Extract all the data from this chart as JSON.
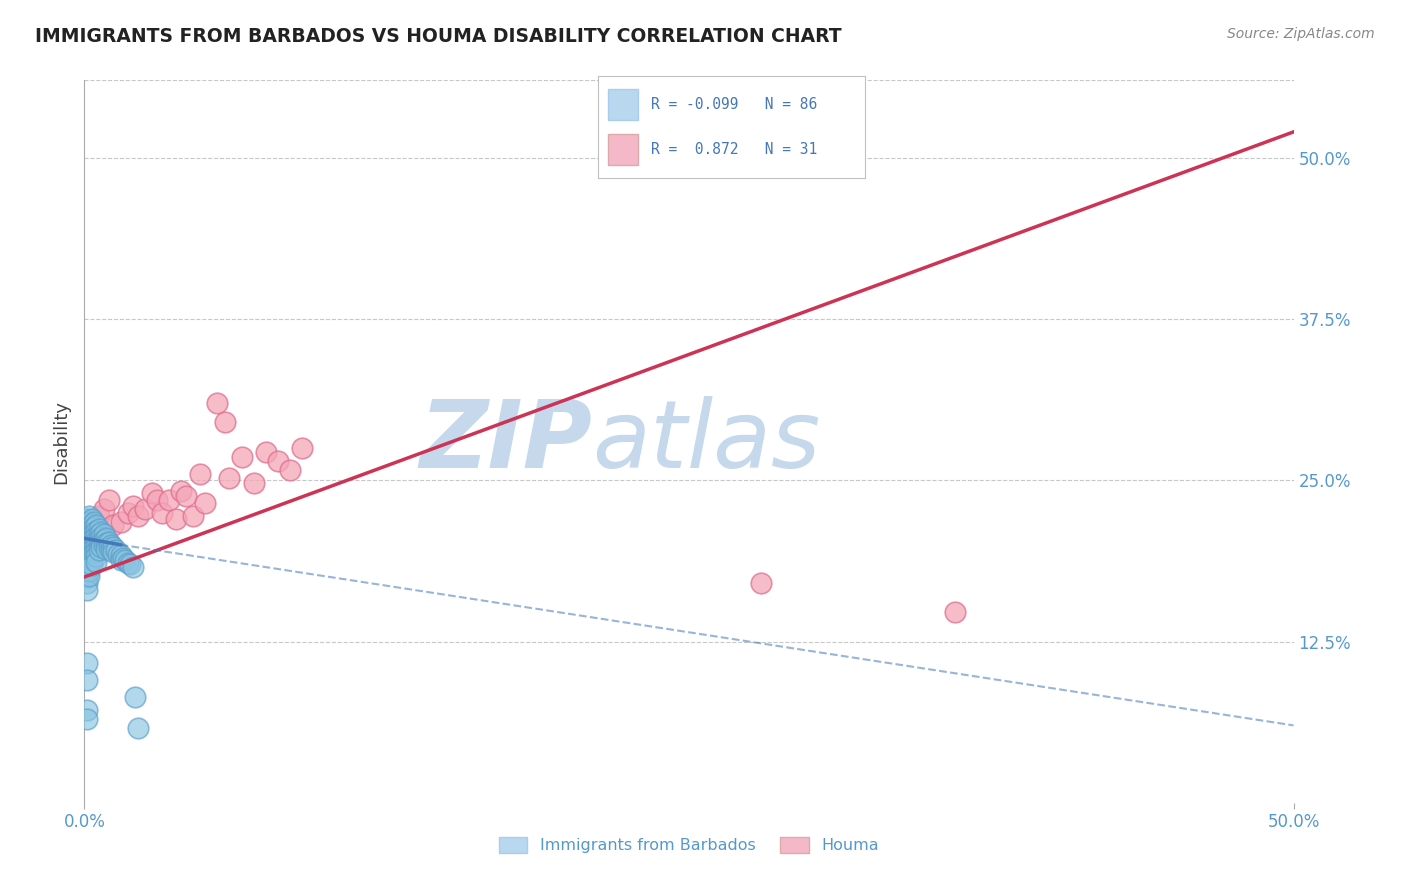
{
  "title": "IMMIGRANTS FROM BARBADOS VS HOUMA DISABILITY CORRELATION CHART",
  "source": "Source: ZipAtlas.com",
  "ylabel_label": "Disability",
  "xlim": [
    0,
    0.5
  ],
  "ylim": [
    0,
    0.56
  ],
  "blue_R": -0.099,
  "blue_N": 86,
  "pink_R": 0.872,
  "pink_N": 31,
  "blue_color": "#89c4e1",
  "blue_edge": "#5b9ec9",
  "pink_color": "#f4a7b8",
  "pink_edge": "#e07090",
  "blue_line_color": "#4477bb",
  "pink_line_color": "#cc3355",
  "watermark_zip_color": "#c5d8ec",
  "watermark_atlas_color": "#c5d8ec",
  "background_color": "#ffffff",
  "grid_color": "#c8c8c8",
  "legend_blue_box": "#b8d8f0",
  "legend_pink_box": "#f4b8c8",
  "tick_color": "#5599cc",
  "blue_scatter_x": [
    0.001,
    0.001,
    0.001,
    0.001,
    0.001,
    0.001,
    0.001,
    0.001,
    0.001,
    0.001,
    0.001,
    0.001,
    0.001,
    0.002,
    0.002,
    0.002,
    0.002,
    0.002,
    0.002,
    0.002,
    0.002,
    0.002,
    0.002,
    0.002,
    0.002,
    0.003,
    0.003,
    0.003,
    0.003,
    0.003,
    0.003,
    0.003,
    0.003,
    0.003,
    0.003,
    0.004,
    0.004,
    0.004,
    0.004,
    0.004,
    0.004,
    0.004,
    0.005,
    0.005,
    0.005,
    0.005,
    0.005,
    0.005,
    0.005,
    0.005,
    0.006,
    0.006,
    0.006,
    0.006,
    0.006,
    0.007,
    0.007,
    0.007,
    0.007,
    0.008,
    0.008,
    0.008,
    0.009,
    0.009,
    0.009,
    0.01,
    0.01,
    0.011,
    0.011,
    0.012,
    0.012,
    0.013,
    0.014,
    0.015,
    0.015,
    0.016,
    0.017,
    0.018,
    0.019,
    0.02,
    0.021,
    0.022,
    0.001,
    0.001,
    0.001,
    0.001
  ],
  "blue_scatter_y": [
    0.22,
    0.215,
    0.21,
    0.205,
    0.2,
    0.198,
    0.195,
    0.19,
    0.185,
    0.18,
    0.175,
    0.17,
    0.165,
    0.222,
    0.218,
    0.212,
    0.208,
    0.204,
    0.2,
    0.196,
    0.192,
    0.188,
    0.184,
    0.18,
    0.176,
    0.22,
    0.216,
    0.212,
    0.208,
    0.204,
    0.2,
    0.196,
    0.192,
    0.188,
    0.184,
    0.218,
    0.214,
    0.21,
    0.206,
    0.202,
    0.198,
    0.194,
    0.215,
    0.211,
    0.207,
    0.203,
    0.199,
    0.195,
    0.191,
    0.187,
    0.212,
    0.208,
    0.204,
    0.2,
    0.196,
    0.21,
    0.206,
    0.202,
    0.198,
    0.208,
    0.204,
    0.2,
    0.205,
    0.201,
    0.197,
    0.202,
    0.198,
    0.2,
    0.196,
    0.198,
    0.194,
    0.196,
    0.193,
    0.192,
    0.188,
    0.19,
    0.188,
    0.186,
    0.185,
    0.183,
    0.082,
    0.058,
    0.108,
    0.072,
    0.095,
    0.065
  ],
  "pink_scatter_x": [
    0.004,
    0.006,
    0.008,
    0.01,
    0.012,
    0.015,
    0.018,
    0.02,
    0.022,
    0.025,
    0.028,
    0.03,
    0.032,
    0.035,
    0.038,
    0.04,
    0.042,
    0.045,
    0.048,
    0.05,
    0.055,
    0.058,
    0.06,
    0.065,
    0.07,
    0.075,
    0.08,
    0.085,
    0.09,
    0.28,
    0.36
  ],
  "pink_scatter_y": [
    0.215,
    0.222,
    0.228,
    0.235,
    0.215,
    0.218,
    0.225,
    0.23,
    0.222,
    0.228,
    0.24,
    0.235,
    0.225,
    0.235,
    0.22,
    0.242,
    0.238,
    0.222,
    0.255,
    0.232,
    0.31,
    0.295,
    0.252,
    0.268,
    0.248,
    0.272,
    0.265,
    0.258,
    0.275,
    0.17,
    0.148
  ],
  "pink_line_x0": 0.0,
  "pink_line_y0": 0.175,
  "pink_line_x1": 0.5,
  "pink_line_y1": 0.52,
  "blue_line_x0": 0.0,
  "blue_line_y0": 0.205,
  "blue_line_x1_solid": 0.015,
  "blue_line_y1_solid": 0.2,
  "blue_line_x1_dash": 0.5,
  "blue_line_y1_dash": 0.06
}
